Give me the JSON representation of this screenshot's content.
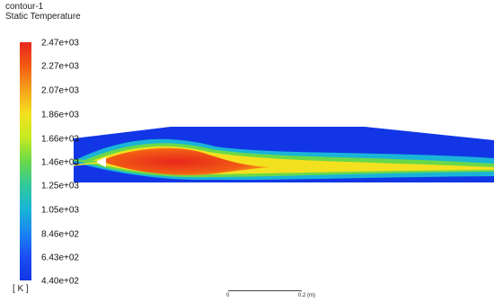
{
  "contour": {
    "name": "contour-1",
    "variable": "Static Temperature",
    "units": "[ K ]"
  },
  "colorbar": {
    "labels": [
      "2.47e+03",
      "2.27e+03",
      "2.07e+03",
      "1.86e+03",
      "1.66e+03",
      "1.46e+03",
      "1.25e+03",
      "1.05e+03",
      "8.46e+02",
      "6.43e+02",
      "4.40e+02"
    ],
    "colors": [
      "#e8261c",
      "#f7a21b",
      "#c6ea21",
      "#31c99a",
      "#1a86f0",
      "#1236e6"
    ]
  },
  "scale_bar": {
    "start": "0",
    "end": "0.2 (m)"
  }
}
